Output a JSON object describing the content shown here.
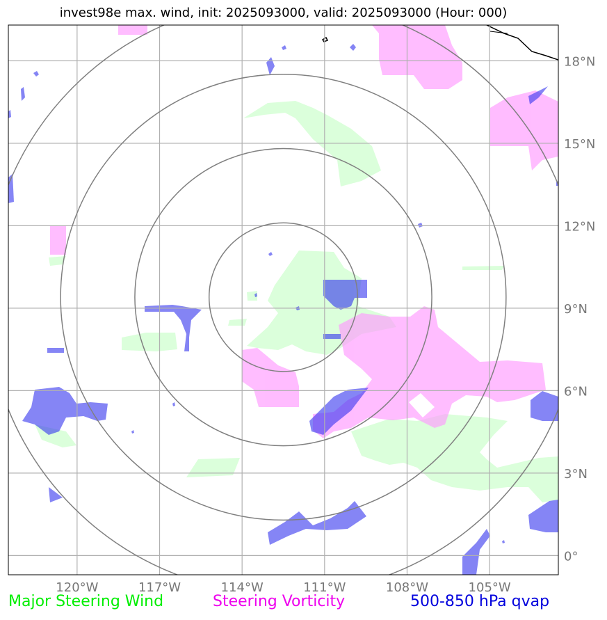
{
  "title": "invest98e max. wind, init: 2025093000, valid: 2025093000 (Hour: 000)",
  "map": {
    "lon_range": [
      -122.5,
      -102.5
    ],
    "lat_range": [
      -0.7,
      19.3
    ],
    "lon_ticks": [
      {
        "value": -120,
        "label": "120°W"
      },
      {
        "value": -117,
        "label": "117°W"
      },
      {
        "value": -114,
        "label": "114°W"
      },
      {
        "value": -111,
        "label": "111°W"
      },
      {
        "value": -108,
        "label": "108°W"
      },
      {
        "value": -105,
        "label": "105°W"
      }
    ],
    "lat_ticks": [
      {
        "value": 0,
        "label": "0°"
      },
      {
        "value": 3,
        "label": "3°N"
      },
      {
        "value": 6,
        "label": "6°N"
      },
      {
        "value": 9,
        "label": "9°N"
      },
      {
        "value": 12,
        "label": "12°N"
      },
      {
        "value": 15,
        "label": "15°N"
      },
      {
        "value": 18,
        "label": "18°N"
      }
    ],
    "storm_center": {
      "lon": -112.5,
      "lat": 9.4
    },
    "range_rings_deg": [
      2.7,
      5.4,
      8.1,
      10.8
    ],
    "colors": {
      "grid": "#b0b0b0",
      "rings": "#808080",
      "steering_wind": "#ccffcc",
      "steering_vorticity": "#ff99ff",
      "qvap": "#3333ee",
      "coast": "#000000"
    }
  },
  "legend": {
    "wind": {
      "label": "Major Steering Wind",
      "color": "#00ee00"
    },
    "vorticity": {
      "label": "Steering Vorticity",
      "color": "#ee00ee"
    },
    "qvap": {
      "label": "500-850 hPa qvap",
      "color": "#0000dd"
    }
  }
}
